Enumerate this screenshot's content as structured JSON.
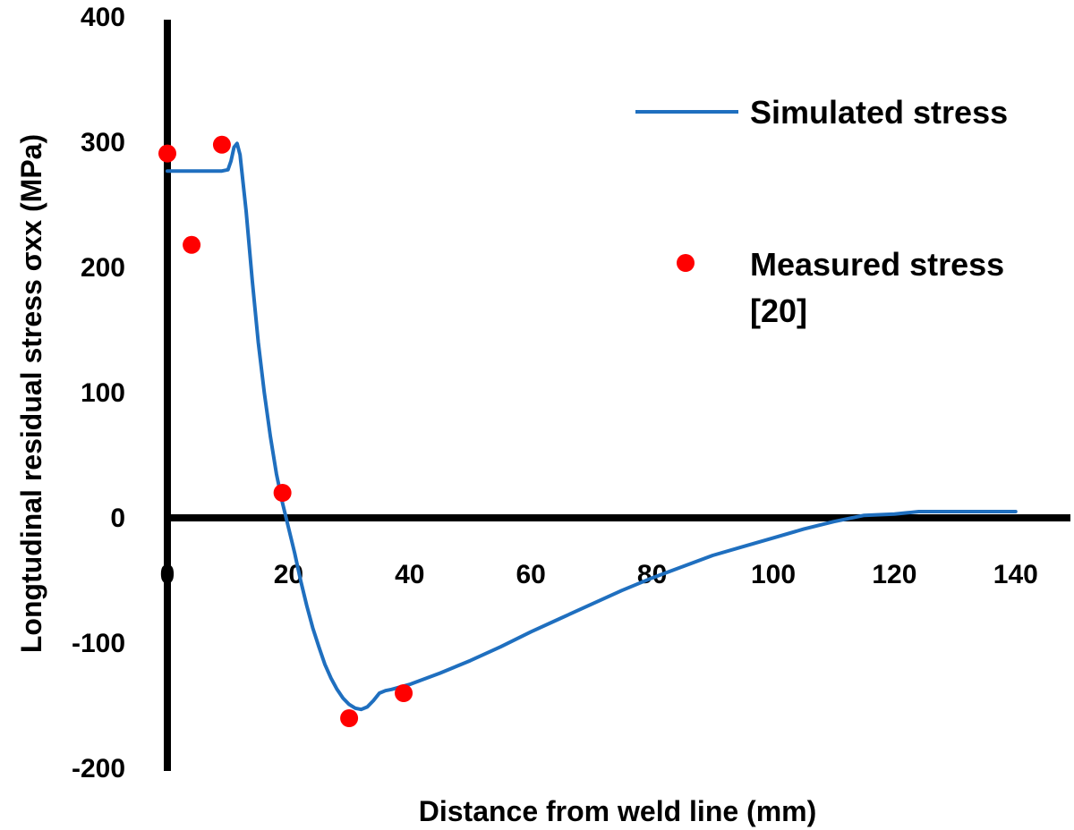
{
  "chart_data": {
    "type": "line",
    "xlabel": "Distance from weld line (mm)",
    "ylabel": "Longtudinal residual stress σxx (MPa)",
    "xlim": [
      0,
      145
    ],
    "ylim": [
      -200,
      400
    ],
    "x_ticks": [
      "0",
      "20",
      "40",
      "60",
      "80",
      "100",
      "120",
      "140"
    ],
    "y_ticks": [
      "400",
      "300",
      "200",
      "100",
      "0",
      "-100",
      "-200"
    ],
    "legend_position": "top-right",
    "series": [
      {
        "name": "Simulated stress",
        "kind": "line",
        "color": "#1f6fbf",
        "x": [
          0,
          3,
          6,
          9,
          10,
          10.5,
          11,
          11.5,
          12,
          13,
          14,
          15,
          16,
          17,
          18,
          19,
          20,
          21,
          22,
          23,
          24,
          25,
          26,
          27,
          28,
          29,
          30,
          31,
          32,
          33,
          34,
          35,
          36,
          37,
          40,
          45,
          50,
          55,
          60,
          65,
          70,
          75,
          80,
          85,
          90,
          95,
          100,
          105,
          110,
          115,
          120,
          122,
          124,
          126,
          130,
          135,
          140
        ],
        "y": [
          277,
          277,
          277,
          277,
          278,
          285,
          296,
          299,
          290,
          245,
          190,
          140,
          100,
          65,
          35,
          12,
          -8,
          -28,
          -50,
          -70,
          -88,
          -103,
          -117,
          -128,
          -137,
          -144,
          -149,
          -152,
          -153,
          -151,
          -146,
          -140,
          -138,
          -137,
          -133,
          -124,
          -114,
          -103,
          -91,
          -80,
          -69,
          -58,
          -48,
          -39,
          -30,
          -23,
          -16,
          -9,
          -3,
          2,
          3,
          4,
          5,
          5,
          5,
          5,
          5
        ]
      },
      {
        "name": "Measured stress [20]",
        "kind": "scatter",
        "color": "#ff0000",
        "x": [
          0,
          4,
          9,
          19,
          30,
          39
        ],
        "y": [
          291,
          218,
          298,
          20,
          -160,
          -140
        ]
      }
    ]
  }
}
